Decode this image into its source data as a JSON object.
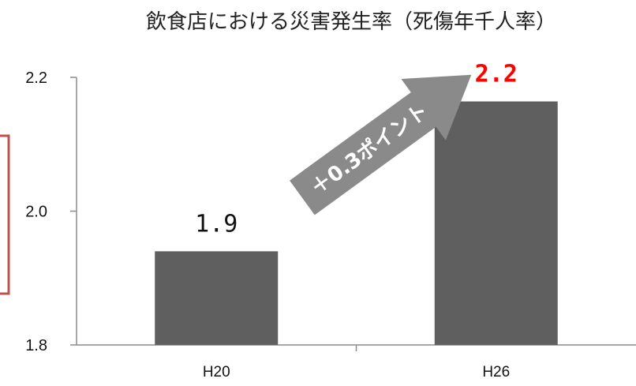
{
  "chart_data": {
    "type": "bar",
    "title": "飲食店における災害発生率（死傷年千人率）",
    "categories": [
      "H20",
      "H26"
    ],
    "values": [
      1.94,
      2.164
    ],
    "data_labels": [
      "1.9",
      "2.2"
    ],
    "ylim": [
      1.8,
      2.2
    ],
    "yticks": [
      "1.8",
      "2.0",
      "2.2"
    ],
    "ytick_values": [
      1.8,
      2.0,
      2.2
    ],
    "xlabel": "",
    "ylabel": "",
    "grid": false,
    "annotation": "＋0.3ポイント",
    "colors": {
      "bar": "#5f5f5f",
      "highlight_label": "#ff0000",
      "normal_label": "#111111",
      "arrow": "#8a8a8a",
      "side_box": "#c0504d"
    }
  }
}
